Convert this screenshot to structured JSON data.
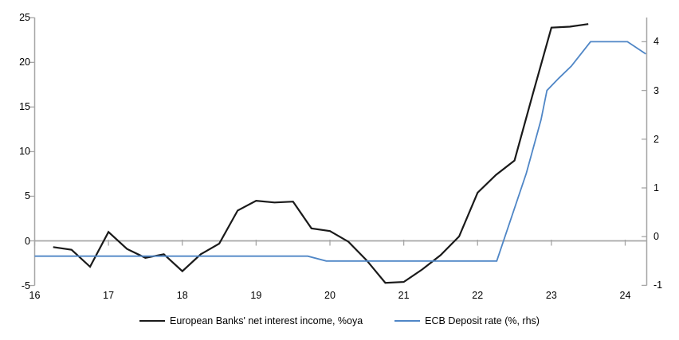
{
  "chart_data": {
    "type": "line",
    "title": "",
    "legend_position": "bottom",
    "grid": false,
    "zero_line": true,
    "x_axis": {
      "tick_labels": [
        "16",
        "17",
        "18",
        "19",
        "20",
        "21",
        "22",
        "23",
        "24"
      ],
      "tick_values": [
        16,
        17,
        18,
        19,
        20,
        21,
        22,
        23,
        24
      ],
      "range": [
        16,
        24.3
      ]
    },
    "left_axis": {
      "tick_labels": [
        "25",
        "20",
        "15",
        "10",
        "5",
        "0",
        "-5"
      ],
      "tick_values": [
        25,
        20,
        15,
        10,
        5,
        0,
        -5
      ],
      "range": [
        -5,
        25
      ]
    },
    "right_axis": {
      "tick_labels": [
        "4",
        "3",
        "2",
        "1",
        "0",
        "-1"
      ],
      "tick_values": [
        4,
        3,
        2,
        1,
        0,
        -1
      ],
      "range": [
        -1,
        4.5
      ]
    },
    "series": [
      {
        "name": "European Banks' net interest income, %oya",
        "axis": "left",
        "color": "#1a1a1a",
        "width": 2.2,
        "x": [
          16.25,
          16.5,
          16.75,
          17.0,
          17.25,
          17.5,
          17.75,
          18.0,
          18.25,
          18.5,
          18.75,
          19.0,
          19.25,
          19.5,
          19.75,
          20.0,
          20.25,
          20.5,
          20.75,
          21.0,
          21.25,
          21.5,
          21.75,
          22.0,
          22.25,
          22.5,
          22.75,
          23.0,
          23.25,
          23.5
        ],
        "values": [
          -0.7,
          -1.0,
          -2.9,
          1.0,
          -0.9,
          -1.9,
          -1.5,
          -3.4,
          -1.5,
          -0.3,
          3.4,
          4.5,
          4.3,
          4.4,
          1.4,
          1.1,
          -0.1,
          -2.2,
          -4.7,
          -4.6,
          -3.2,
          -1.6,
          0.5,
          5.4,
          7.4,
          9.0,
          16.5,
          23.9,
          24.0,
          24.3
        ]
      },
      {
        "name": "ECB Deposit rate (%, rhs)",
        "axis": "right",
        "color": "#4f86c6",
        "width": 1.8,
        "x": [
          16.0,
          19.7,
          19.95,
          22.26,
          22.66,
          22.86,
          22.94,
          23.1,
          23.27,
          23.53,
          24.03,
          24.28
        ],
        "values": [
          -0.4,
          -0.4,
          -0.5,
          -0.5,
          1.3,
          2.4,
          3.0,
          3.25,
          3.5,
          4.0,
          4.0,
          3.75
        ]
      }
    ]
  },
  "colors": {
    "axis_gray": "#a6a6a6",
    "background": "#ffffff"
  }
}
